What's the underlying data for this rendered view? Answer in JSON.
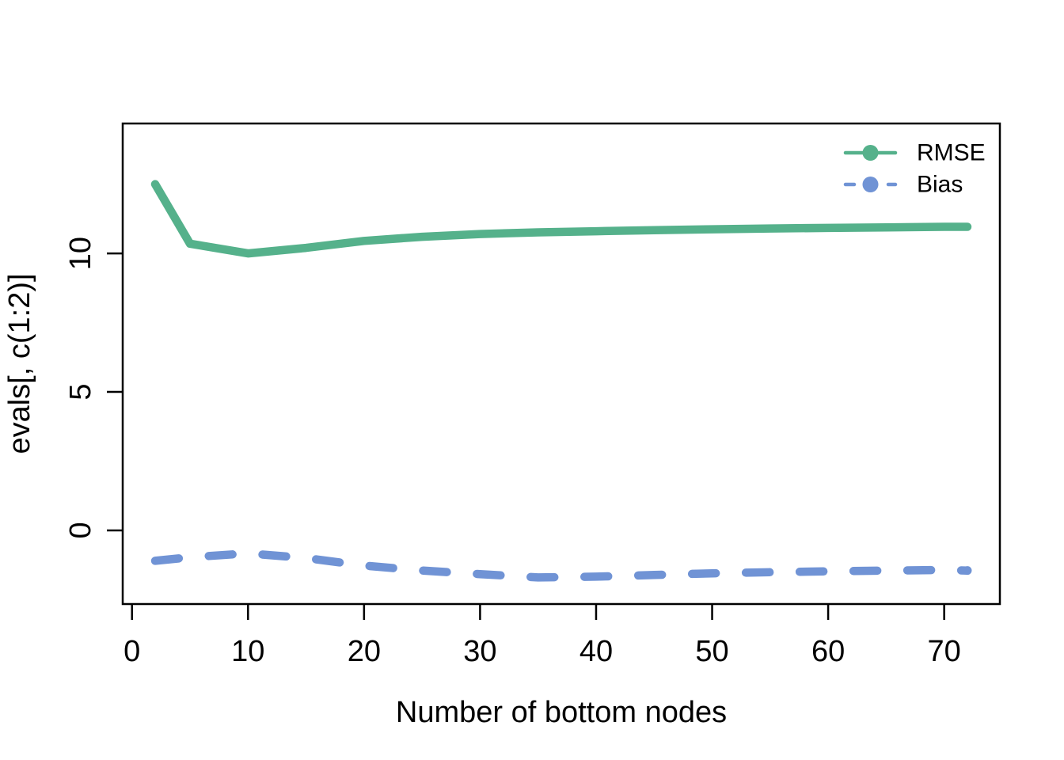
{
  "figure": {
    "background_color": "#ffffff",
    "axis_color": "#000000",
    "text_color": "#000000"
  },
  "chart_data": {
    "type": "line",
    "title": "",
    "xlabel": "Number of bottom nodes",
    "ylabel": "evals[, c(1:2)]",
    "x": [
      2,
      5,
      10,
      15,
      20,
      25,
      30,
      35,
      40,
      45,
      50,
      55,
      60,
      65,
      70,
      72
    ],
    "series": [
      {
        "name": "RMSE",
        "color": "#55B18B",
        "line_style": "solid",
        "values": [
          12.5,
          10.35,
          10.0,
          10.2,
          10.45,
          10.6,
          10.7,
          10.76,
          10.8,
          10.84,
          10.87,
          10.9,
          10.92,
          10.94,
          10.96,
          10.96
        ],
        "end_marker": false
      },
      {
        "name": "Bias",
        "color": "#7093D5",
        "line_style": "dashed",
        "values": [
          -1.1,
          -0.97,
          -0.83,
          -1.0,
          -1.27,
          -1.45,
          -1.58,
          -1.7,
          -1.67,
          -1.61,
          -1.55,
          -1.51,
          -1.48,
          -1.45,
          -1.43,
          -1.45
        ],
        "end_marker": true
      }
    ],
    "x_ticks": [
      0,
      10,
      20,
      30,
      40,
      50,
      60,
      70
    ],
    "y_ticks": [
      0,
      5,
      10
    ],
    "xlim": [
      -0.8,
      74.8
    ],
    "ylim": [
      -2.66,
      14.69
    ],
    "grid": false,
    "frame": true,
    "legend": {
      "position": "top-right",
      "entries": [
        "RMSE",
        "Bias"
      ]
    }
  }
}
